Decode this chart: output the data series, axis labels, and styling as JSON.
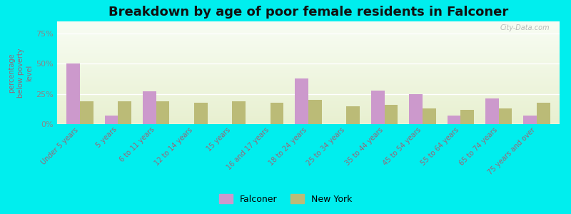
{
  "title": "Breakdown by age of poor female residents in Falconer",
  "ylabel": "percentage\nbelow poverty\nlevel",
  "categories": [
    "Under 5 years",
    "5 years",
    "6 to 11 years",
    "12 to 14 years",
    "15 years",
    "16 and 17 years",
    "18 to 24 years",
    "25 to 34 years",
    "35 to 44 years",
    "45 to 54 years",
    "55 to 64 years",
    "65 to 74 years",
    "75 years and over"
  ],
  "falconer": [
    50,
    7,
    27,
    0,
    0,
    0,
    38,
    0,
    28,
    25,
    7,
    21,
    7
  ],
  "newyork": [
    19,
    19,
    19,
    18,
    19,
    18,
    20,
    15,
    16,
    13,
    12,
    13,
    18
  ],
  "falconer_color": "#cc99cc",
  "newyork_color": "#bbbb77",
  "bar_width": 0.35,
  "ylim": [
    0,
    85
  ],
  "yticks": [
    0,
    25,
    50,
    75
  ],
  "ytick_labels": [
    "0%",
    "25%",
    "50%",
    "75%"
  ],
  "bg_top": "#f5faf0",
  "bg_bottom": "#e0f0d0",
  "outer_bg": "#00eeee",
  "title_fontsize": 13,
  "legend_falconer": "Falconer",
  "legend_newyork": "New York",
  "watermark": "City-Data.com",
  "xlabel_color": "#996677",
  "ylabel_color": "#996677",
  "ytick_color": "#888888"
}
